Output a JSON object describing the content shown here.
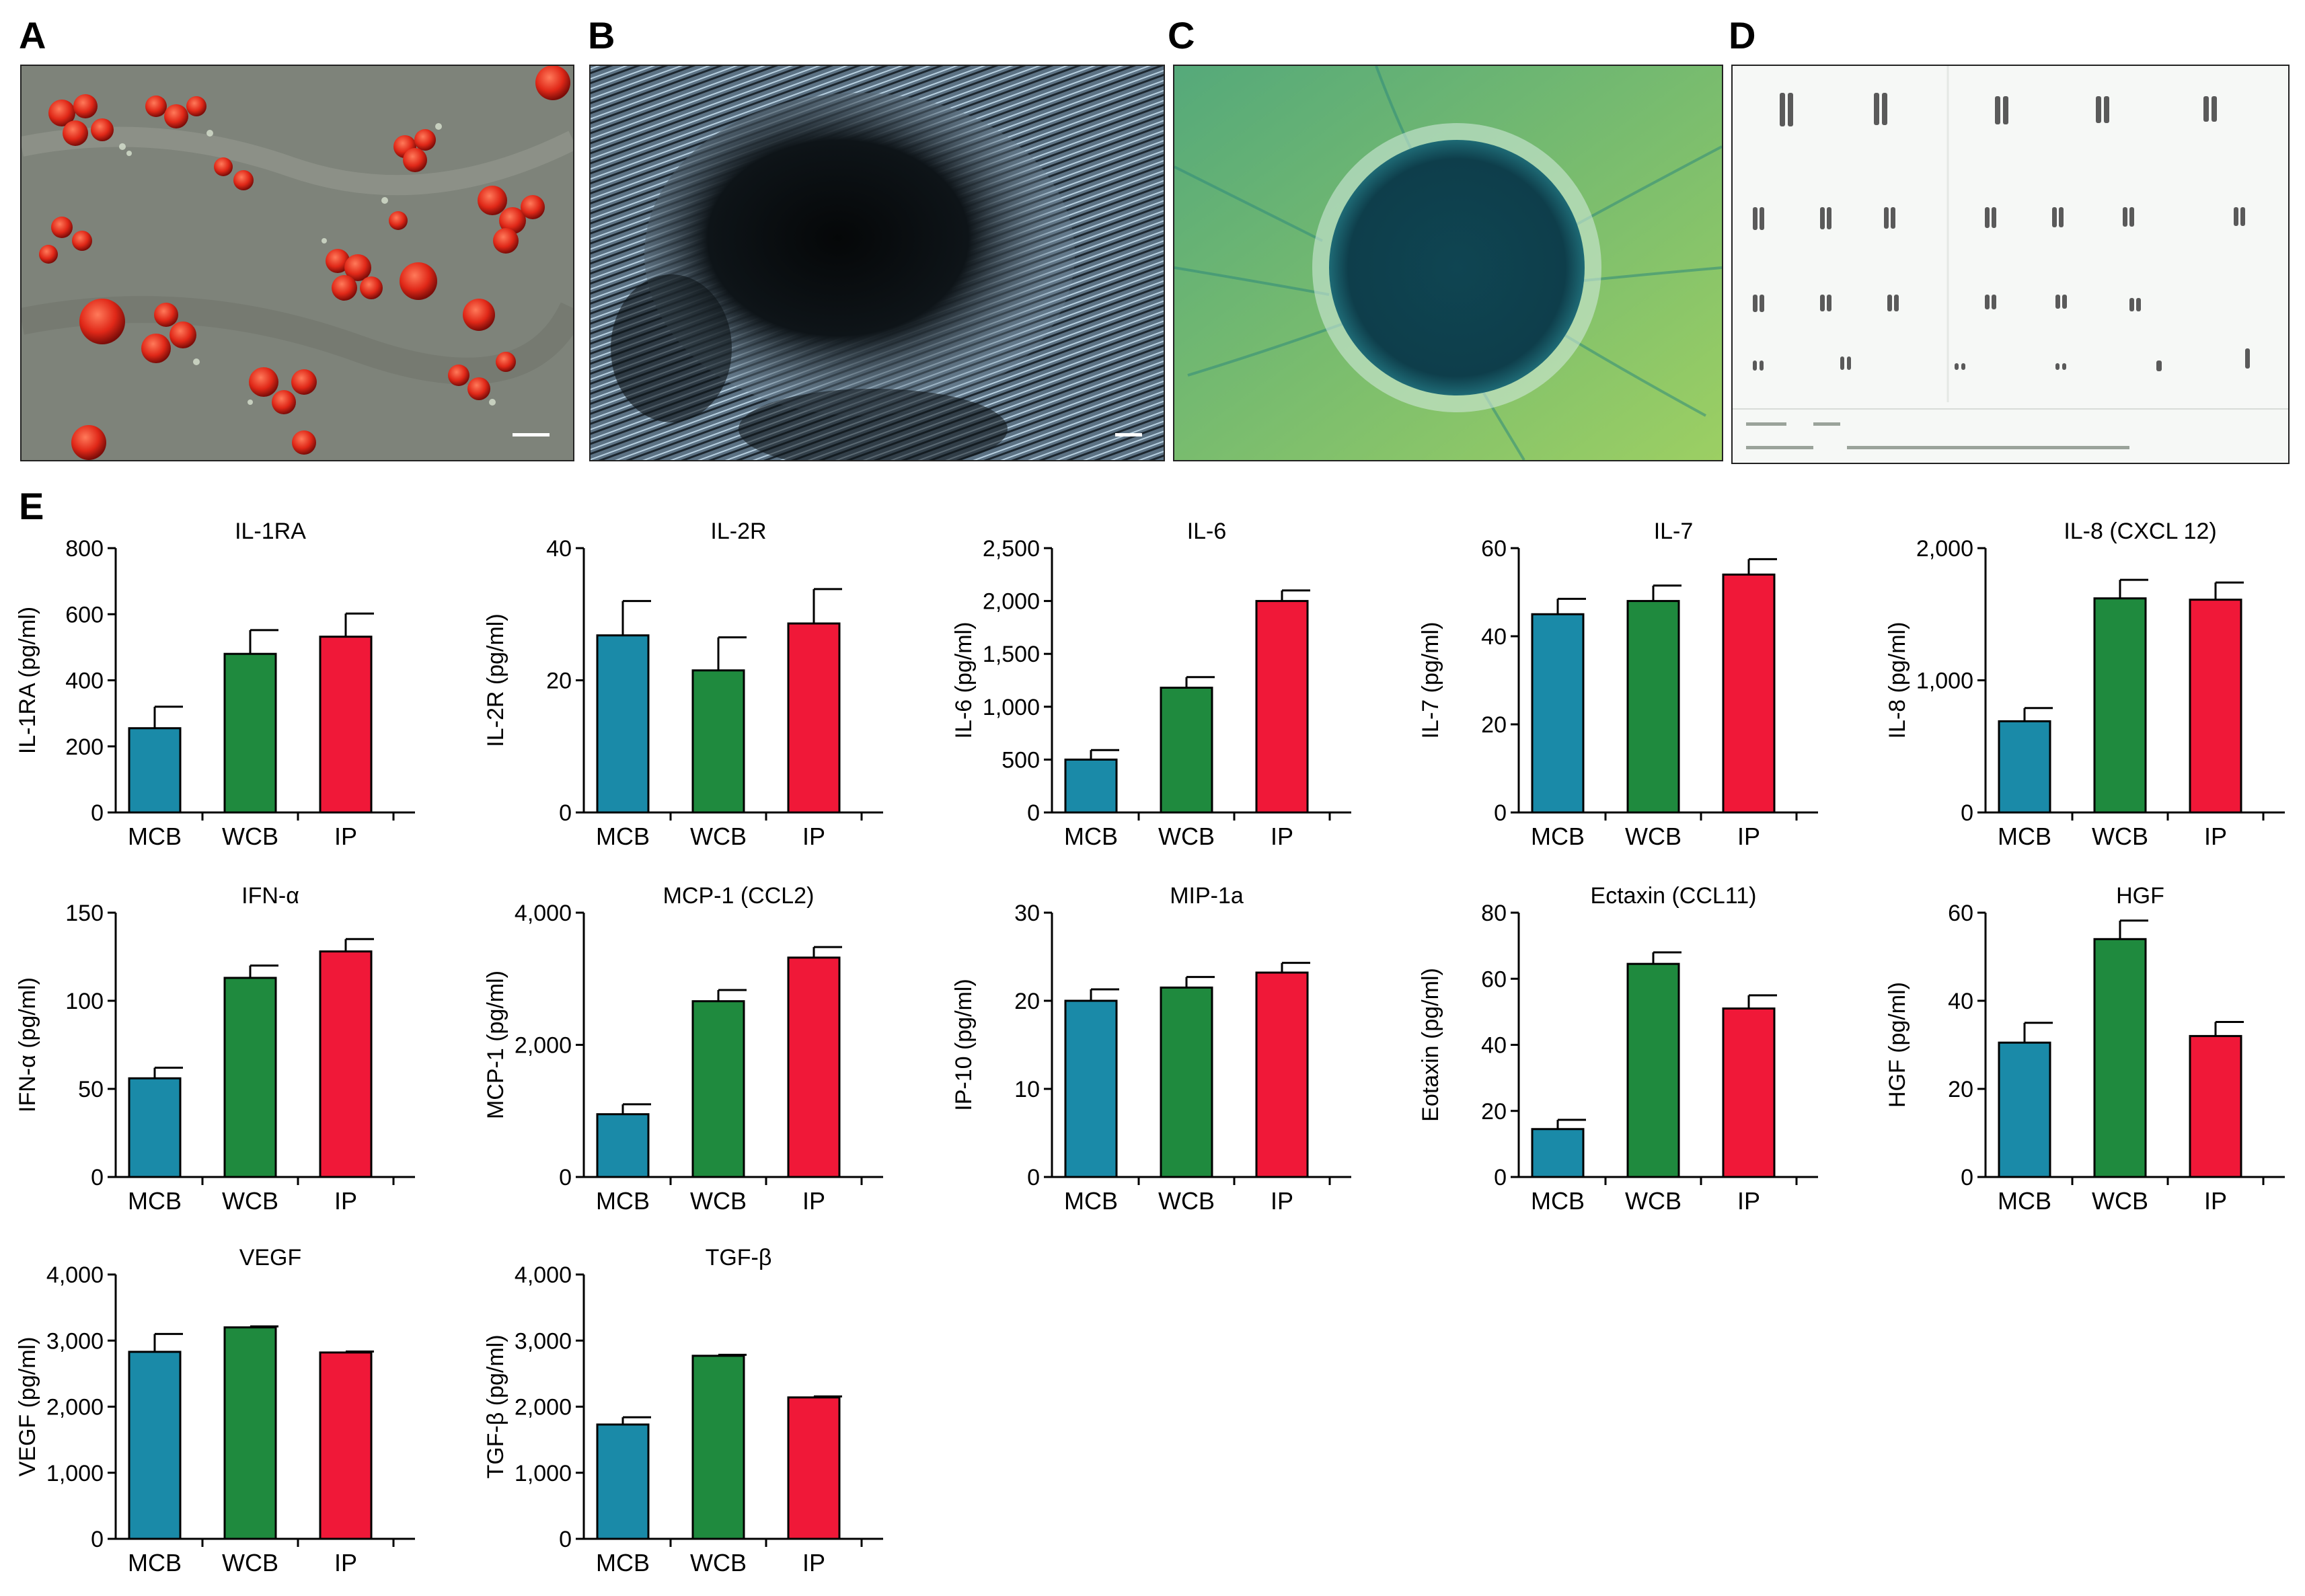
{
  "panels": {
    "A": "A",
    "B": "B",
    "C": "C",
    "D": "D",
    "E": "E"
  },
  "colors": {
    "MCB": "#1a8aa8",
    "WCB": "#1f8a3e",
    "IP": "#f01838"
  },
  "chart_data": [
    {
      "type": "bar",
      "title": "IL-1RA",
      "ylabel": "IL-1RA (pg/ml)",
      "categories": [
        "MCB",
        "WCB",
        "IP"
      ],
      "values": [
        255,
        480,
        532
      ],
      "errors": [
        65,
        72,
        70
      ],
      "ylim": [
        0,
        800
      ],
      "yticks": [
        0,
        200,
        400,
        600,
        800
      ],
      "ytick_labels": [
        "0",
        "200",
        "400",
        "600",
        "800"
      ]
    },
    {
      "type": "bar",
      "title": "IL-2R",
      "ylabel": "IL-2R (pg/ml)",
      "categories": [
        "MCB",
        "WCB",
        "IP"
      ],
      "values": [
        26.8,
        21.5,
        28.6
      ],
      "errors": [
        5.2,
        5.0,
        5.2
      ],
      "ylim": [
        0,
        40
      ],
      "yticks": [
        0,
        20,
        40
      ],
      "ytick_labels": [
        "0",
        "20",
        "40"
      ]
    },
    {
      "type": "bar",
      "title": "IL-6",
      "ylabel": "IL-6 (pg/ml)",
      "categories": [
        "MCB",
        "WCB",
        "IP"
      ],
      "values": [
        500,
        1180,
        2000
      ],
      "errors": [
        90,
        100,
        100
      ],
      "ylim": [
        0,
        2500
      ],
      "yticks": [
        0,
        500,
        1000,
        1500,
        2000,
        2500
      ],
      "ytick_labels": [
        "0",
        "500",
        "1,000",
        "1,500",
        "2,000",
        "2,500"
      ]
    },
    {
      "type": "bar",
      "title": "IL-7",
      "ylabel": "IL-7 (pg/ml)",
      "categories": [
        "MCB",
        "WCB",
        "IP"
      ],
      "values": [
        45,
        48,
        54
      ],
      "errors": [
        3.5,
        3.5,
        3.5
      ],
      "ylim": [
        0,
        60
      ],
      "yticks": [
        0,
        20,
        40,
        60
      ],
      "ytick_labels": [
        "0",
        "20",
        "40",
        "60"
      ]
    },
    {
      "type": "bar",
      "title": "IL-8 (CXCL 12)",
      "ylabel": "IL-8 (pg/ml)",
      "categories": [
        "MCB",
        "WCB",
        "IP"
      ],
      "values": [
        690,
        1620,
        1610
      ],
      "errors": [
        100,
        140,
        130
      ],
      "ylim": [
        0,
        2000
      ],
      "yticks": [
        0,
        1000,
        2000
      ],
      "ytick_labels": [
        "0",
        "1,000",
        "2,000"
      ]
    },
    {
      "type": "bar",
      "title": "IFN-α",
      "ylabel": "IFN-α (pg/ml)",
      "categories": [
        "MCB",
        "WCB",
        "IP"
      ],
      "values": [
        56,
        113,
        128
      ],
      "errors": [
        6,
        7,
        7
      ],
      "ylim": [
        0,
        150
      ],
      "yticks": [
        0,
        50,
        100,
        150
      ],
      "ytick_labels": [
        "0",
        "50",
        "100",
        "150"
      ]
    },
    {
      "type": "bar",
      "title": "MCP-1 (CCL2)",
      "ylabel": "MCP-1 (pg/ml)",
      "categories": [
        "MCB",
        "WCB",
        "IP"
      ],
      "values": [
        950,
        2660,
        3320
      ],
      "errors": [
        150,
        170,
        160
      ],
      "ylim": [
        0,
        4000
      ],
      "yticks": [
        0,
        2000,
        4000
      ],
      "ytick_labels": [
        "0",
        "2,000",
        "4,000"
      ]
    },
    {
      "type": "bar",
      "title": "MIP-1a",
      "ylabel": "IP-10 (pg/ml)",
      "categories": [
        "MCB",
        "WCB",
        "IP"
      ],
      "values": [
        20,
        21.5,
        23.2
      ],
      "errors": [
        1.3,
        1.2,
        1.1
      ],
      "ylim": [
        0,
        30
      ],
      "yticks": [
        0,
        10,
        20,
        30
      ],
      "ytick_labels": [
        "0",
        "10",
        "20",
        "30"
      ]
    },
    {
      "type": "bar",
      "title": "Ectaxin (CCL11)",
      "ylabel": "Eotaxin (pg/ml)",
      "categories": [
        "MCB",
        "WCB",
        "IP"
      ],
      "values": [
        14.5,
        64.5,
        51
      ],
      "errors": [
        2.8,
        3.5,
        4
      ],
      "ylim": [
        0,
        80
      ],
      "yticks": [
        0,
        20,
        40,
        60,
        80
      ],
      "ytick_labels": [
        "0",
        "20",
        "40",
        "60",
        "80"
      ]
    },
    {
      "type": "bar",
      "title": "HGF",
      "ylabel": "HGF (pg/ml)",
      "categories": [
        "MCB",
        "WCB",
        "IP"
      ],
      "values": [
        30.5,
        54,
        32
      ],
      "errors": [
        4.5,
        4.2,
        3.2
      ],
      "ylim": [
        0,
        60
      ],
      "yticks": [
        0,
        20,
        40,
        60
      ],
      "ytick_labels": [
        "0",
        "20",
        "40",
        "60"
      ]
    },
    {
      "type": "bar",
      "title": "VEGF",
      "ylabel": "VEGF (pg/ml)",
      "categories": [
        "MCB",
        "WCB",
        "IP"
      ],
      "values": [
        2830,
        3200,
        2820
      ],
      "errors": [
        270,
        15,
        15
      ],
      "ylim": [
        0,
        4000
      ],
      "yticks": [
        0,
        1000,
        2000,
        3000,
        4000
      ],
      "ytick_labels": [
        "0",
        "1,000",
        "2,000",
        "3,000",
        "4,000"
      ]
    },
    {
      "type": "bar",
      "title": "TGF-β",
      "ylabel": "TGF-β (pg/ml)",
      "categories": [
        "MCB",
        "WCB",
        "IP"
      ],
      "values": [
        1730,
        2770,
        2140
      ],
      "errors": [
        110,
        15,
        15
      ],
      "ylim": [
        0,
        4000
      ],
      "yticks": [
        0,
        1000,
        2000,
        3000,
        4000
      ],
      "ytick_labels": [
        "0",
        "1,000",
        "2,000",
        "3,000",
        "4,000"
      ]
    }
  ]
}
